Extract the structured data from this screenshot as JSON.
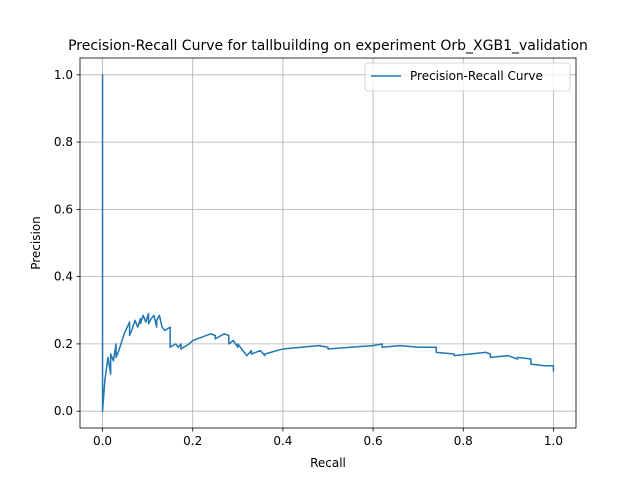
{
  "chart_data": {
    "type": "line",
    "title": "Precision-Recall Curve for tallbuilding on experiment Orb_XGB1_validation",
    "xlabel": "Recall",
    "ylabel": "Precision",
    "xlim": [
      -0.05,
      1.05
    ],
    "ylim": [
      -0.05,
      1.05
    ],
    "xticks": [
      0.0,
      0.2,
      0.4,
      0.6,
      0.8,
      1.0
    ],
    "xtick_labels": [
      "0.0",
      "0.2",
      "0.4",
      "0.6",
      "0.8",
      "1.0"
    ],
    "yticks": [
      0.0,
      0.2,
      0.4,
      0.6,
      0.8,
      1.0
    ],
    "ytick_labels": [
      "0.0",
      "0.2",
      "0.4",
      "0.6",
      "0.8",
      "1.0"
    ],
    "grid": true,
    "legend_position": "upper right",
    "series": [
      {
        "name": "Precision-Recall Curve",
        "color": "#1f77b4",
        "x": [
          0.0,
          0.0,
          0.0,
          0.005,
          0.012,
          0.018,
          0.018,
          0.024,
          0.03,
          0.03,
          0.036,
          0.048,
          0.06,
          0.06,
          0.066,
          0.072,
          0.078,
          0.084,
          0.084,
          0.09,
          0.096,
          0.102,
          0.102,
          0.108,
          0.114,
          0.12,
          0.12,
          0.126,
          0.132,
          0.138,
          0.144,
          0.15,
          0.15,
          0.162,
          0.168,
          0.174,
          0.174,
          0.18,
          0.186,
          0.192,
          0.2,
          0.22,
          0.24,
          0.25,
          0.25,
          0.27,
          0.28,
          0.28,
          0.29,
          0.3,
          0.3,
          0.32,
          0.33,
          0.33,
          0.35,
          0.36,
          0.36,
          0.4,
          0.44,
          0.48,
          0.5,
          0.5,
          0.55,
          0.6,
          0.62,
          0.62,
          0.66,
          0.7,
          0.74,
          0.74,
          0.78,
          0.78,
          0.85,
          0.86,
          0.86,
          0.9,
          0.92,
          0.92,
          0.95,
          0.95,
          0.98,
          1.0,
          1.0
        ],
        "y": [
          0.0,
          1.0,
          0.0,
          0.09,
          0.16,
          0.11,
          0.17,
          0.15,
          0.2,
          0.16,
          0.18,
          0.23,
          0.265,
          0.225,
          0.245,
          0.27,
          0.25,
          0.275,
          0.26,
          0.285,
          0.265,
          0.29,
          0.26,
          0.275,
          0.285,
          0.25,
          0.27,
          0.285,
          0.25,
          0.24,
          0.245,
          0.25,
          0.19,
          0.2,
          0.19,
          0.2,
          0.185,
          0.19,
          0.195,
          0.2,
          0.21,
          0.22,
          0.23,
          0.225,
          0.215,
          0.23,
          0.225,
          0.2,
          0.21,
          0.19,
          0.2,
          0.165,
          0.18,
          0.17,
          0.18,
          0.165,
          0.17,
          0.185,
          0.19,
          0.195,
          0.19,
          0.185,
          0.19,
          0.195,
          0.2,
          0.19,
          0.195,
          0.19,
          0.19,
          0.175,
          0.17,
          0.165,
          0.175,
          0.17,
          0.16,
          0.165,
          0.155,
          0.16,
          0.155,
          0.14,
          0.135,
          0.135,
          0.12
        ]
      }
    ]
  }
}
